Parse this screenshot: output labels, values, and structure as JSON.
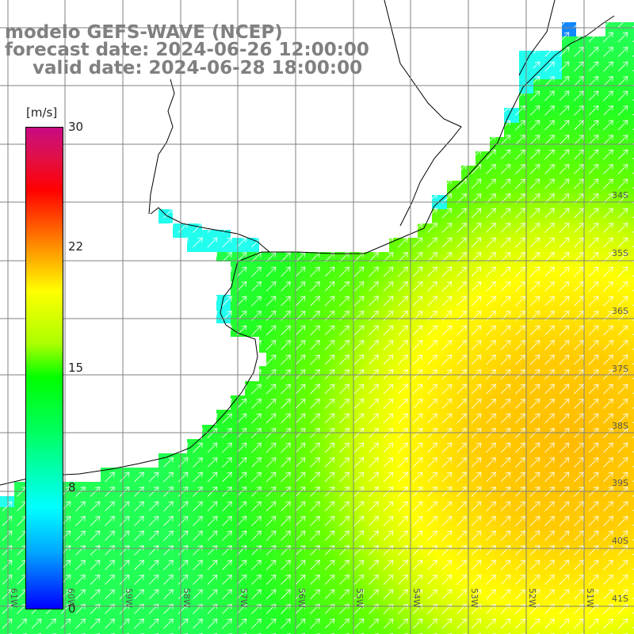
{
  "header": {
    "model_line": "modelo GEFS-WAVE (NCEP)",
    "forecast_line": "forecast date: 2024-06-26 12:00:00",
    "valid_line": "valid date: 2024-06-28 18:00:00"
  },
  "colorbar": {
    "unit": "[m/s]",
    "ticks": [
      "30",
      "22",
      "15",
      "8",
      "0"
    ],
    "tick_values": [
      30,
      22,
      15,
      8,
      0
    ],
    "range": [
      0,
      30
    ],
    "colors": [
      "#0000ff",
      "#00aaff",
      "#00ffff",
      "#00ff66",
      "#00ff00",
      "#aaff00",
      "#ffff00",
      "#ffaa00",
      "#ff5500",
      "#ff0000",
      "#c80a82"
    ]
  },
  "map": {
    "lat_labels": [
      "34S",
      "35S",
      "36S",
      "37S",
      "38S",
      "39S",
      "40S",
      "41S"
    ],
    "lon_labels": [
      "61W",
      "60W",
      "59W",
      "58W",
      "57W",
      "56W",
      "55W",
      "54W",
      "53W",
      "52W",
      "51W"
    ],
    "wind_direction": "SW to NE",
    "land_color": "#ffffff",
    "grid_color": "#808080"
  }
}
